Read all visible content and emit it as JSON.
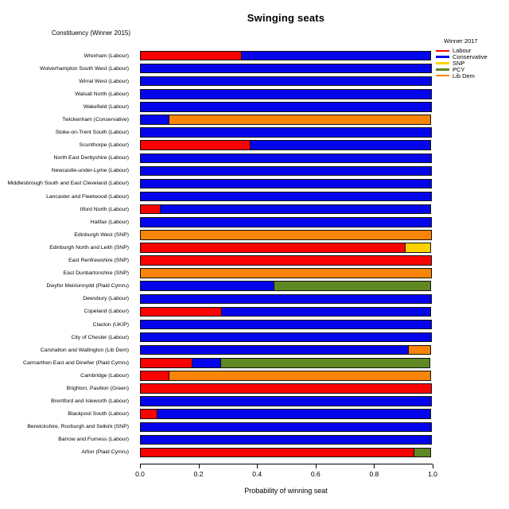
{
  "title": "Swinging seats",
  "y_axis_header": "Constituency (Winner 2015)",
  "x_axis": {
    "label": "Probability of winning seat",
    "ticks": [
      "0.0",
      "0.2",
      "0.4",
      "0.6",
      "0.8",
      "1.0"
    ],
    "range": [
      0,
      1
    ]
  },
  "legend": {
    "title": "Winner 2017",
    "items": [
      {
        "label": "Labour",
        "color": "#f80202"
      },
      {
        "label": "Conservative",
        "color": "#0505ec"
      },
      {
        "label": "SNP",
        "color": "#ffd300"
      },
      {
        "label": "PCY",
        "color": "#5f8722"
      },
      {
        "label": "Lib Dem",
        "color": "#f88408"
      }
    ]
  },
  "chart_data": {
    "type": "bar",
    "orientation": "horizontal",
    "stacked": true,
    "title": "Swinging seats",
    "xlabel": "Probability of winning seat",
    "ylabel": "Constituency (Winner 2015)",
    "xlim": [
      0,
      1
    ],
    "grid": false,
    "legend_position": "top-right",
    "legend_title": "Winner 2017",
    "party_colors": {
      "Labour": "#f80202",
      "Conservative": "#0505ec",
      "SNP": "#ffd300",
      "PCY": "#5f8722",
      "Lib Dem": "#f88408"
    },
    "rows": [
      {
        "constituency": "Wrexham (Labour)",
        "segments": [
          {
            "party": "Labour",
            "value": 0.35
          },
          {
            "party": "Conservative",
            "value": 0.65
          }
        ]
      },
      {
        "constituency": "Wolverhampton South West (Labour)",
        "segments": [
          {
            "party": "Conservative",
            "value": 1.0
          }
        ]
      },
      {
        "constituency": "Wirral West (Labour)",
        "segments": [
          {
            "party": "Conservative",
            "value": 1.0
          }
        ]
      },
      {
        "constituency": "Walsall North (Labour)",
        "segments": [
          {
            "party": "Conservative",
            "value": 1.0
          }
        ]
      },
      {
        "constituency": "Wakefield (Labour)",
        "segments": [
          {
            "party": "Conservative",
            "value": 1.0
          }
        ]
      },
      {
        "constituency": "Twickenham (Conservative)",
        "segments": [
          {
            "party": "Conservative",
            "value": 0.1
          },
          {
            "party": "Lib Dem",
            "value": 0.9
          }
        ]
      },
      {
        "constituency": "Stoke-on-Trent South (Labour)",
        "segments": [
          {
            "party": "Conservative",
            "value": 1.0
          }
        ]
      },
      {
        "constituency": "Scunthorpe (Labour)",
        "segments": [
          {
            "party": "Labour",
            "value": 0.38
          },
          {
            "party": "Conservative",
            "value": 0.62
          }
        ]
      },
      {
        "constituency": "North East Derbyshire (Labour)",
        "segments": [
          {
            "party": "Conservative",
            "value": 1.0
          }
        ]
      },
      {
        "constituency": "Newcastle-under-Lyme (Labour)",
        "segments": [
          {
            "party": "Conservative",
            "value": 1.0
          }
        ]
      },
      {
        "constituency": "Middlesbrough South and East Cleveland (Labour)",
        "segments": [
          {
            "party": "Conservative",
            "value": 1.0
          }
        ]
      },
      {
        "constituency": "Lancaster and Fleetwood (Labour)",
        "segments": [
          {
            "party": "Conservative",
            "value": 1.0
          }
        ]
      },
      {
        "constituency": "Ilford North (Labour)",
        "segments": [
          {
            "party": "Labour",
            "value": 0.07
          },
          {
            "party": "Conservative",
            "value": 0.93
          }
        ]
      },
      {
        "constituency": "Halifax (Labour)",
        "segments": [
          {
            "party": "Conservative",
            "value": 1.0
          }
        ]
      },
      {
        "constituency": "Edinburgh West (SNP)",
        "segments": [
          {
            "party": "Lib Dem",
            "value": 1.0
          }
        ]
      },
      {
        "constituency": "Edinburgh North and Leith (SNP)",
        "segments": [
          {
            "party": "Labour",
            "value": 0.91
          },
          {
            "party": "SNP",
            "value": 0.09
          }
        ]
      },
      {
        "constituency": "East Renfrewshire (SNP)",
        "segments": [
          {
            "party": "Labour",
            "value": 1.0
          }
        ]
      },
      {
        "constituency": "East Dunbartonshire (SNP)",
        "segments": [
          {
            "party": "Lib Dem",
            "value": 1.0
          }
        ]
      },
      {
        "constituency": "Dwyfor Meirionnydd (Plaid Cymru)",
        "segments": [
          {
            "party": "Conservative",
            "value": 0.46
          },
          {
            "party": "PCY",
            "value": 0.54
          }
        ]
      },
      {
        "constituency": "Dewsbury (Labour)",
        "segments": [
          {
            "party": "Conservative",
            "value": 1.0
          }
        ]
      },
      {
        "constituency": "Copeland (Labour)",
        "segments": [
          {
            "party": "Labour",
            "value": 0.28
          },
          {
            "party": "Conservative",
            "value": 0.72
          }
        ]
      },
      {
        "constituency": "Clacton (UKIP)",
        "segments": [
          {
            "party": "Conservative",
            "value": 1.0
          }
        ]
      },
      {
        "constituency": "City of Chester (Labour)",
        "segments": [
          {
            "party": "Conservative",
            "value": 1.0
          }
        ]
      },
      {
        "constituency": "Carshalton and Wallington (Lib Dem)",
        "segments": [
          {
            "party": "Conservative",
            "value": 0.92
          },
          {
            "party": "Lib Dem",
            "value": 0.08
          }
        ]
      },
      {
        "constituency": "Carmarthen East and Dinefwr (Plaid Cymru)",
        "segments": [
          {
            "party": "Labour",
            "value": 0.18
          },
          {
            "party": "Conservative",
            "value": 0.1
          },
          {
            "party": "PCY",
            "value": 0.72
          }
        ]
      },
      {
        "constituency": "Cambridge (Labour)",
        "segments": [
          {
            "party": "Labour",
            "value": 0.1
          },
          {
            "party": "Lib Dem",
            "value": 0.9
          }
        ]
      },
      {
        "constituency": "Brighton, Pavilion (Green)",
        "segments": [
          {
            "party": "Labour",
            "value": 1.0
          }
        ]
      },
      {
        "constituency": "Brentford and Isleworth (Labour)",
        "segments": [
          {
            "party": "Conservative",
            "value": 1.0
          }
        ]
      },
      {
        "constituency": "Blackpool South (Labour)",
        "segments": [
          {
            "party": "Labour",
            "value": 0.06
          },
          {
            "party": "Conservative",
            "value": 0.94
          }
        ]
      },
      {
        "constituency": "Berwickshire, Roxburgh and Selkirk (SNP)",
        "segments": [
          {
            "party": "Conservative",
            "value": 1.0
          }
        ]
      },
      {
        "constituency": "Barrow and Furness (Labour)",
        "segments": [
          {
            "party": "Conservative",
            "value": 1.0
          }
        ]
      },
      {
        "constituency": "Arfon (Plaid Cymru)",
        "segments": [
          {
            "party": "Labour",
            "value": 0.94
          },
          {
            "party": "PCY",
            "value": 0.06
          }
        ]
      }
    ]
  }
}
